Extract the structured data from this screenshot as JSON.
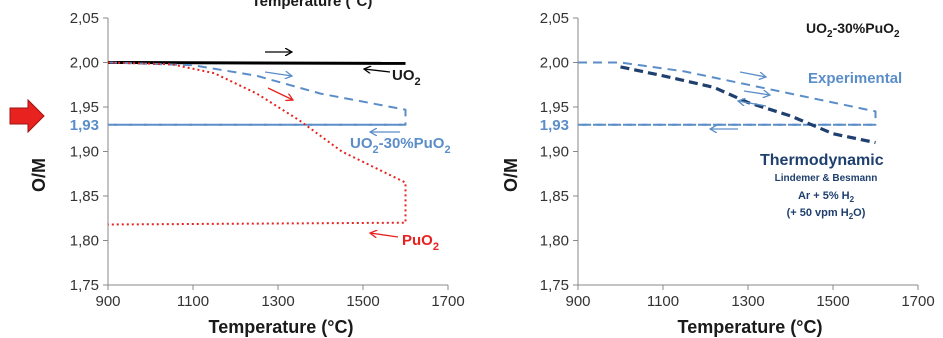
{
  "figure": {
    "top_cut_title": "Temperature (°C)",
    "pointer_icon": "right-arrow-icon"
  },
  "chart_data": [
    {
      "type": "line",
      "title": "",
      "xlabel": "Temperature (°C)",
      "ylabel": "O/M",
      "xlim": [
        900,
        1700
      ],
      "ylim": [
        1.75,
        2.05
      ],
      "xticks": [
        "900",
        "1100",
        "1300",
        "1500",
        "1700"
      ],
      "yticks": [
        "1,75",
        "1,80",
        "1,85",
        "1,90",
        "1,95",
        "2,00",
        "2,05"
      ],
      "grid": false,
      "reference_line": {
        "y": 1.93,
        "label": "1,93",
        "color": "#5b8ec9"
      },
      "series": [
        {
          "name": "UO2",
          "label_main": "UO",
          "label_sub": "2",
          "label_tail": "",
          "color": "#000000",
          "style": "solid",
          "x": [
            900,
            1600
          ],
          "y": [
            2.0,
            1.999
          ]
        },
        {
          "name": "UO2-30%PuO2",
          "label_main": "UO",
          "label_sub": "2",
          "label_tail": "-30%PuO",
          "label_sub2": "2",
          "color": "#5b8ec9",
          "style": "dashed",
          "x": [
            900,
            1100,
            1250,
            1400,
            1600,
            1600,
            900
          ],
          "y": [
            2.0,
            1.997,
            1.985,
            1.965,
            1.947,
            1.93,
            1.93
          ]
        },
        {
          "name": "PuO2",
          "label_main": "PuO",
          "label_sub": "2",
          "label_tail": "",
          "color": "#e8231f",
          "style": "dotted",
          "x": [
            900,
            1050,
            1150,
            1250,
            1350,
            1450,
            1600,
            1600,
            900
          ],
          "y": [
            2.0,
            1.998,
            1.988,
            1.965,
            1.935,
            1.9,
            1.865,
            1.82,
            1.818
          ]
        }
      ]
    },
    {
      "type": "line",
      "title": "UO2-30%PuO2",
      "title_main": "UO",
      "title_sub": "2",
      "title_tail": "-30%PuO",
      "title_sub2": "2",
      "xlabel": "Temperature (°C)",
      "ylabel": "O/M",
      "xlim": [
        900,
        1700
      ],
      "ylim": [
        1.75,
        2.05
      ],
      "xticks": [
        "900",
        "1100",
        "1300",
        "1500",
        "1700"
      ],
      "yticks": [
        "1,75",
        "1,80",
        "1,85",
        "1,90",
        "1,95",
        "2,00",
        "2,05"
      ],
      "grid": false,
      "reference_line": {
        "y": 1.93,
        "label": "1,93",
        "color": "#5b8ec9"
      },
      "series": [
        {
          "name": "Experimental",
          "color": "#5b8ec9",
          "style": "dashed",
          "x": [
            900,
            1000,
            1150,
            1300,
            1450,
            1600,
            1600,
            900
          ],
          "y": [
            2.0,
            2.0,
            1.99,
            1.975,
            1.96,
            1.945,
            1.93,
            1.93
          ]
        },
        {
          "name": "Thermodynamic",
          "color": "#1f3f6e",
          "style": "dashed-bold",
          "x": [
            1000,
            1100,
            1220,
            1300,
            1400,
            1500,
            1600
          ],
          "y": [
            1.995,
            1.985,
            1.972,
            1.955,
            1.94,
            1.92,
            1.91
          ]
        }
      ],
      "annotations": {
        "thermo_title": "Thermodynamic",
        "thermo_authors": "Lindemer & Besmann",
        "thermo_gas_main": "Ar + 5% H",
        "thermo_gas_sub": "2",
        "thermo_vpm_main": "(+ 50 vpm H",
        "thermo_vpm_sub": "2",
        "thermo_vpm_tail": "O)"
      }
    }
  ]
}
